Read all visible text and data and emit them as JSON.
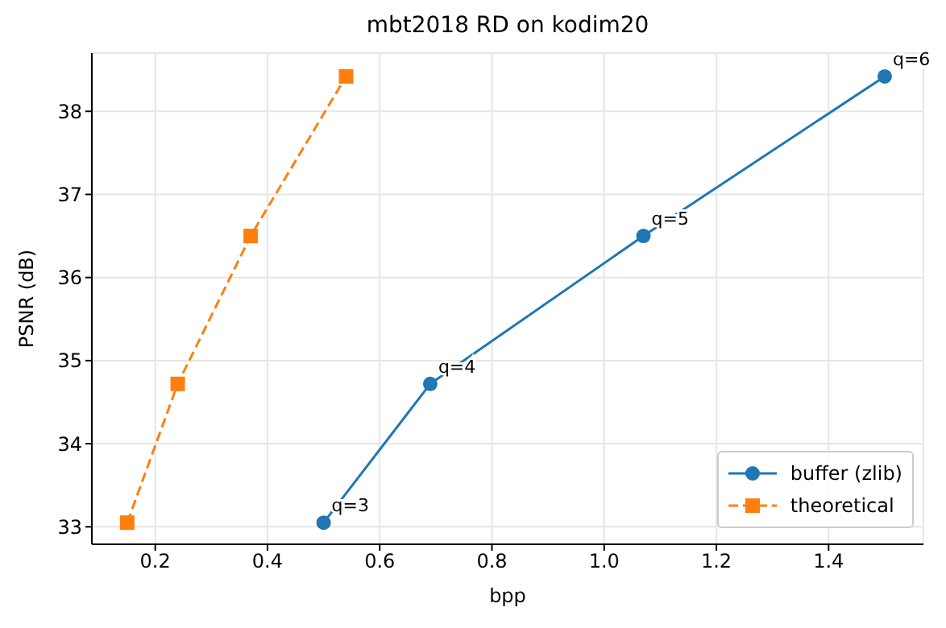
{
  "chart_data": {
    "type": "line",
    "title": "mbt2018 RD on kodim20",
    "xlabel": "bpp",
    "ylabel": "PSNR (dB)",
    "series": [
      {
        "name": "buffer (zlib)",
        "color": "#1f77b4",
        "marker": "circle",
        "line_style": "solid",
        "x": [
          0.5,
          0.69,
          1.07,
          1.5
        ],
        "values": [
          33.05,
          34.72,
          36.5,
          38.42
        ]
      },
      {
        "name": "theoretical",
        "color": "#ff7f0e",
        "marker": "square",
        "line_style": "dashed",
        "x": [
          0.15,
          0.24,
          0.37,
          0.54
        ],
        "values": [
          33.05,
          34.72,
          36.5,
          38.42
        ]
      }
    ],
    "annotations": [
      {
        "text": "q=3",
        "x": 0.5,
        "y": 33.05
      },
      {
        "text": "q=4",
        "x": 0.69,
        "y": 34.72
      },
      {
        "text": "q=5",
        "x": 1.07,
        "y": 36.5
      },
      {
        "text": "q=6",
        "x": 1.5,
        "y": 38.42
      }
    ],
    "xlim": [
      0.087,
      1.569
    ],
    "xticks": [
      {
        "value": 0.2,
        "label": "0.2"
      },
      {
        "value": 0.4,
        "label": "0.4"
      },
      {
        "value": 0.6,
        "label": "0.6"
      },
      {
        "value": 0.8,
        "label": "0.8"
      },
      {
        "value": 1.0,
        "label": "1.0"
      },
      {
        "value": 1.2,
        "label": "1.2"
      },
      {
        "value": 1.4,
        "label": "1.4"
      }
    ],
    "ylim": [
      32.79,
      38.7
    ],
    "yticks": [
      33,
      34,
      35,
      36,
      37,
      38
    ],
    "grid": true,
    "legend": "bottom right"
  }
}
